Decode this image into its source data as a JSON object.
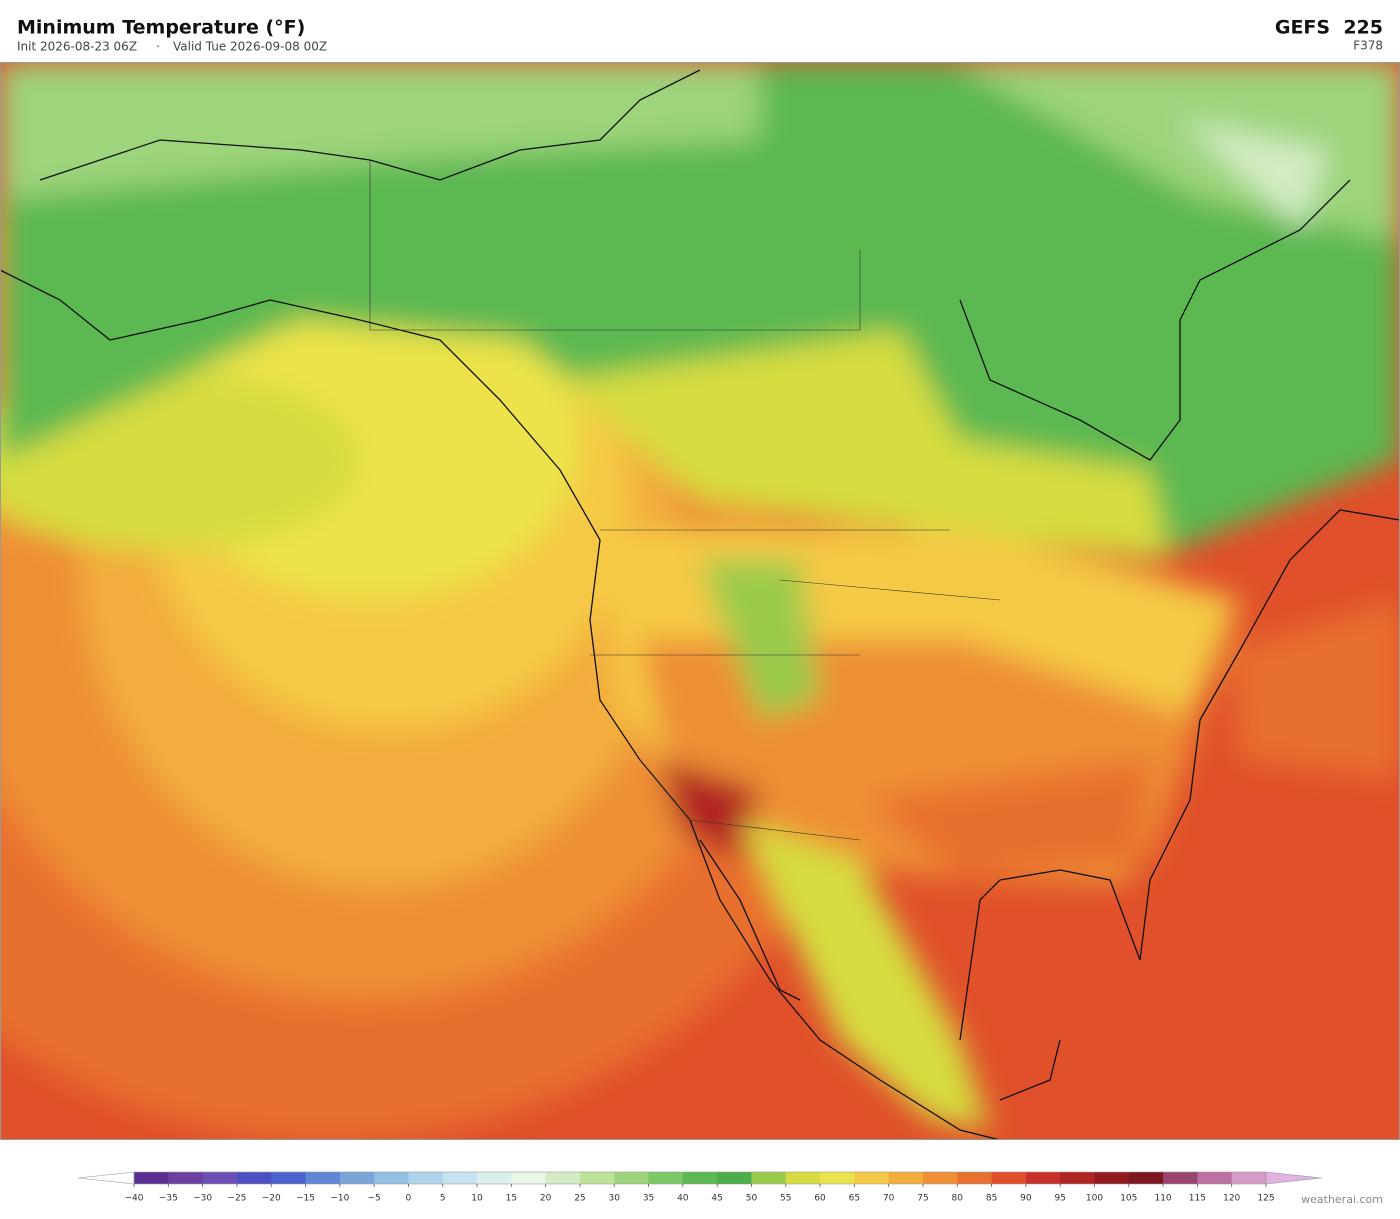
{
  "header": {
    "title": "Minimum Temperature  (°F)",
    "init": "Init 2026-08-23 06Z",
    "separator": "·",
    "valid": "Valid Tue 2026-09-08 00Z",
    "model": "GEFS  225",
    "forecast_hour": "F378"
  },
  "colorbar": {
    "under_color": "#ffffff",
    "over_color": "#e2b2e0",
    "colors": [
      "#5a2d91",
      "#6a3fa0",
      "#6b4fb5",
      "#4f4fc4",
      "#4a62cc",
      "#5f86d4",
      "#7aa5d9",
      "#93bfe2",
      "#aed4eb",
      "#c6e3f0",
      "#dcefef",
      "#e8f5e8",
      "#d3ecc4",
      "#bde39b",
      "#9dd47c",
      "#7cc865",
      "#5cb851",
      "#4aad4a",
      "#9bcb4b",
      "#d6dc3f",
      "#ebe34a",
      "#f5c945",
      "#f3ad3d",
      "#ee8f35",
      "#e8702f",
      "#e0502a",
      "#c9302a",
      "#b02422",
      "#931a1e",
      "#7c1620",
      "#9a4470",
      "#bc6fa3",
      "#d69cc8"
    ],
    "ticks": [
      {
        "value": -40,
        "label": "−40"
      },
      {
        "value": -35,
        "label": "−35"
      },
      {
        "value": -30,
        "label": "−30"
      },
      {
        "value": -25,
        "label": "−25"
      },
      {
        "value": -20,
        "label": "−20"
      },
      {
        "value": -15,
        "label": "−15"
      },
      {
        "value": -10,
        "label": "−10"
      },
      {
        "value": -5,
        "label": "−5"
      },
      0,
      5,
      10,
      15,
      20,
      25,
      30,
      35,
      40,
      45,
      50,
      55,
      60,
      65,
      70,
      75,
      80,
      85,
      90,
      95,
      100,
      105,
      110,
      115,
      120,
      125
    ]
  },
  "footer": {
    "credit": "weatherai.com"
  }
}
